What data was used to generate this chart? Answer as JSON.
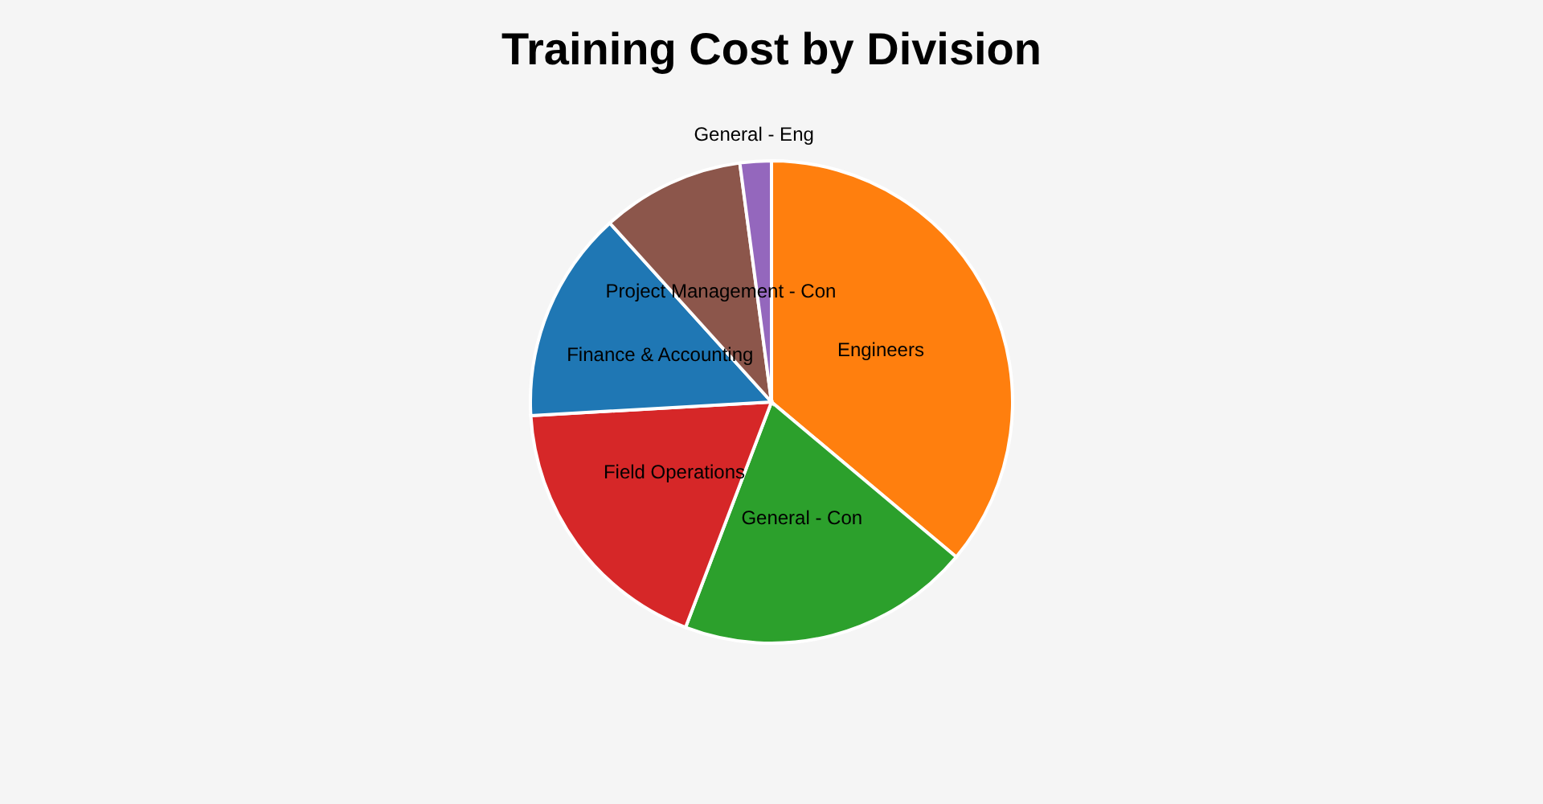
{
  "chart_data": {
    "type": "pie",
    "title": "Training Cost by Division",
    "categories": [
      "Engineers",
      "General - Con",
      "Field Operations",
      "Finance & Accounting",
      "Project Management - Con",
      "General - Eng"
    ],
    "values": [
      36.1,
      19.7,
      18.3,
      14.2,
      9.6,
      2.1
    ],
    "colors": [
      "#ff7f0e",
      "#2ca02c",
      "#d62728",
      "#1f77b4",
      "#8c564b",
      "#9467bd"
    ],
    "legend": false
  }
}
